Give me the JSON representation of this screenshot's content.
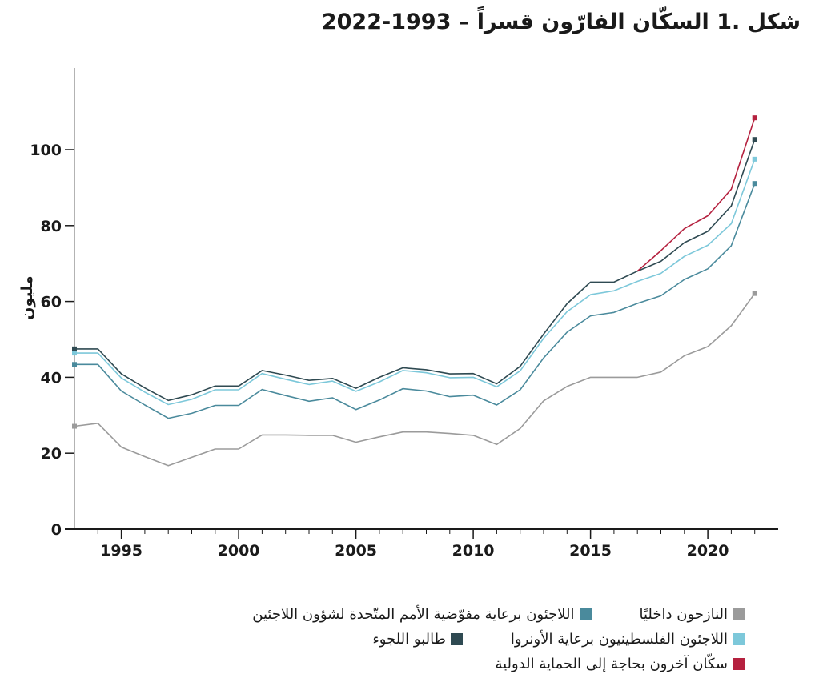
{
  "chart_data": {
    "type": "line",
    "title": "شكل .1 السكّان الفارّون قسراً – 1993-2022",
    "ylabel": "مليون",
    "xlabel": "",
    "ylim": [
      0,
      120
    ],
    "xlim": [
      1993,
      2023
    ],
    "yticks": [
      0,
      20,
      40,
      60,
      80,
      100
    ],
    "xticks": [
      1995,
      2000,
      2005,
      2010,
      2015,
      2020
    ],
    "grid": false,
    "legend_position": "bottom",
    "x": [
      1993,
      1994,
      1995,
      1996,
      1997,
      1998,
      1999,
      2000,
      2001,
      2002,
      2003,
      2004,
      2005,
      2006,
      2007,
      2008,
      2009,
      2010,
      2011,
      2012,
      2013,
      2014,
      2015,
      2016,
      2017,
      2018,
      2019,
      2020,
      2021,
      2022
    ],
    "series": [
      {
        "name": "النازحون داخليًا",
        "color": "#9b9b9b",
        "values": [
          27.1,
          27.9,
          21.6,
          19.1,
          16.7,
          18.9,
          21.1,
          21.1,
          24.8,
          24.8,
          24.7,
          24.7,
          22.9,
          24.3,
          25.6,
          25.6,
          25.2,
          24.7,
          22.3,
          26.5,
          33.8,
          37.6,
          40.0,
          40.0,
          40.0,
          41.4,
          45.7,
          48.1,
          53.6,
          62.1
        ]
      },
      {
        "name": "اللاجئون برعاية مفوّضية الأمم المتّحدة لشؤون اللاجئين",
        "color": "#4a8a9c",
        "values": [
          43.4,
          43.4,
          36.4,
          32.7,
          29.2,
          30.5,
          32.6,
          32.6,
          36.8,
          35.2,
          33.7,
          34.6,
          31.5,
          34.0,
          37.0,
          36.4,
          34.9,
          35.3,
          32.7,
          36.7,
          45.1,
          51.9,
          56.2,
          57.1,
          59.5,
          61.5,
          65.8,
          68.6,
          74.7,
          91.1
        ]
      },
      {
        "name": "اللاجئون الفلسطينيون برعاية الأونروا",
        "color": "#7dc8da",
        "values": [
          46.4,
          46.4,
          39.8,
          36.1,
          32.8,
          34.2,
          36.7,
          36.7,
          41.0,
          39.5,
          38.1,
          39.0,
          36.3,
          38.8,
          41.8,
          41.2,
          39.9,
          40.0,
          37.5,
          41.7,
          50.3,
          57.3,
          61.8,
          62.8,
          65.3,
          67.4,
          71.9,
          74.8,
          80.5,
          97.5
        ]
      },
      {
        "name": "طالبو اللجوء",
        "color": "#2f4a52",
        "values": [
          47.5,
          47.5,
          40.9,
          37.2,
          33.9,
          35.4,
          37.7,
          37.7,
          41.8,
          40.6,
          39.2,
          39.7,
          37.1,
          40.0,
          42.5,
          42.0,
          40.9,
          41.0,
          38.3,
          42.9,
          51.4,
          59.4,
          65.1,
          65.1,
          68.0,
          70.6,
          75.5,
          78.5,
          85.2,
          102.7
        ]
      },
      {
        "name": "سكّان آخرون بحاجة إلى الحماية الدولية",
        "color": "#b5213f",
        "values": [
          null,
          null,
          null,
          null,
          null,
          null,
          null,
          null,
          null,
          null,
          null,
          null,
          null,
          null,
          null,
          null,
          null,
          null,
          null,
          null,
          null,
          null,
          null,
          null,
          68.0,
          73.4,
          79.2,
          82.6,
          89.6,
          108.4
        ]
      }
    ],
    "legend_rows": [
      [
        0,
        1
      ],
      [
        2,
        3
      ],
      [
        4
      ]
    ]
  }
}
